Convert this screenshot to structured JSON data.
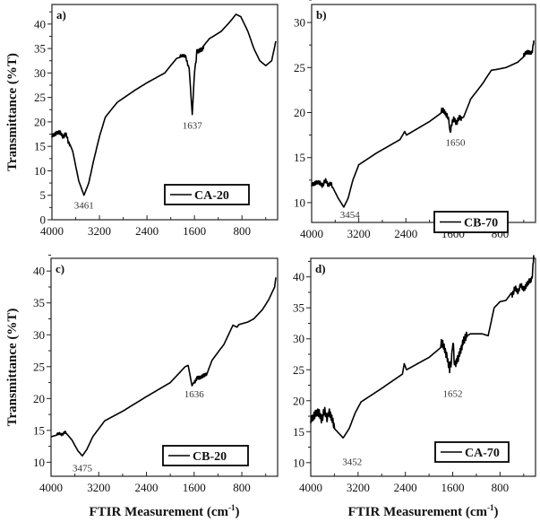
{
  "chart_data": [
    {
      "type": "line",
      "panel_label": "a)",
      "legend": "CA-20",
      "ylabel": "Transmittance (%T)",
      "xlabel": "",
      "xlim": [
        4000,
        200
      ],
      "ylim": [
        0,
        44
      ],
      "xticks": [
        "4000",
        "3200",
        "2400",
        "1600",
        "800"
      ],
      "yticks": [
        "0",
        "5",
        "10",
        "15",
        "20",
        "25",
        "30",
        "35",
        "40"
      ],
      "annotations": [
        {
          "text": "3461",
          "x": 3461,
          "y": 2.3
        },
        {
          "text": "1637",
          "x": 1637,
          "y": 18.6
        }
      ],
      "x": [
        4000,
        3850,
        3750,
        3650,
        3550,
        3461,
        3380,
        3300,
        3200,
        3100,
        2900,
        2600,
        2400,
        2100,
        1900,
        1750,
        1690,
        1637,
        1600,
        1560,
        1450,
        1350,
        1150,
        1000,
        900,
        820,
        700,
        600,
        500,
        400,
        300,
        230
      ],
      "y": [
        17.5,
        17.5,
        17,
        14,
        8,
        5,
        7.5,
        12,
        17,
        21,
        24,
        26.5,
        28,
        30,
        33,
        33.5,
        31,
        21.5,
        30,
        34.5,
        35.5,
        37,
        38.5,
        40.5,
        42,
        41.5,
        38.5,
        35,
        32.5,
        31.5,
        32.5,
        36.5
      ],
      "noise": [
        [
          4000,
          3700,
          0.7
        ],
        [
          1850,
          1700,
          0.5
        ],
        [
          1580,
          1450,
          0.8
        ]
      ]
    },
    {
      "type": "line",
      "panel_label": "b)",
      "legend": "CB-70",
      "ylabel": "",
      "xlabel": "",
      "xlim": [
        4000,
        200
      ],
      "ylim": [
        7.8,
        32
      ],
      "xticks": [
        "4000",
        "3200",
        "2400",
        "1600",
        "800"
      ],
      "yticks": [
        "10",
        "15",
        "20",
        "25",
        "30"
      ],
      "annotations": [
        {
          "text": "3454",
          "x": 3350,
          "y": 8.3
        },
        {
          "text": "1650",
          "x": 1560,
          "y": 16.3
        }
      ],
      "x": [
        4000,
        3850,
        3750,
        3650,
        3550,
        3454,
        3380,
        3300,
        3200,
        2900,
        2500,
        2420,
        2390,
        2000,
        1750,
        1690,
        1650,
        1600,
        1500,
        1420,
        1300,
        1100,
        950,
        850,
        700,
        500,
        350,
        260,
        230
      ],
      "y": [
        12.2,
        12,
        12.3,
        11.8,
        10.5,
        9.5,
        10.5,
        12.5,
        14.2,
        15.5,
        17,
        17.9,
        17.5,
        19,
        20.2,
        19.8,
        17.8,
        19,
        19.2,
        19.5,
        21.5,
        23.2,
        24.7,
        24.8,
        25,
        25.6,
        26.5,
        26.8,
        28
      ],
      "noise": [
        [
          4000,
          3650,
          0.4
        ],
        [
          1800,
          1450,
          0.5
        ],
        [
          400,
          230,
          0.4
        ]
      ]
    },
    {
      "type": "line",
      "panel_label": "c)",
      "legend": "CB-20",
      "ylabel": "Transmittance (%T)",
      "xlabel": "FTIR Measurement (cm-1)",
      "xlim": [
        4000,
        200
      ],
      "ylim": [
        7.8,
        42
      ],
      "xticks": [
        "4000",
        "3200",
        "2400",
        "1600",
        "800"
      ],
      "yticks": [
        "10",
        "15",
        "20",
        "25",
        "30",
        "35",
        "40"
      ],
      "annotations": [
        {
          "text": "3475",
          "x": 3475,
          "y": 8.6
        },
        {
          "text": "1636",
          "x": 1600,
          "y": 20.2
        }
      ],
      "x": [
        4000,
        3850,
        3750,
        3650,
        3550,
        3475,
        3400,
        3300,
        3100,
        2800,
        2400,
        2000,
        1750,
        1700,
        1636,
        1550,
        1400,
        1300,
        1100,
        950,
        880,
        850,
        700,
        600,
        450,
        350,
        250,
        230
      ],
      "y": [
        14,
        14.4,
        14.6,
        13.5,
        11.8,
        11,
        12,
        14,
        16.5,
        18,
        20.3,
        22.5,
        25,
        25.2,
        22,
        23.5,
        23.5,
        26,
        28.5,
        31.5,
        31.2,
        31.6,
        32,
        32.5,
        34,
        35.5,
        37.5,
        39
      ],
      "noise": [
        [
          3900,
          3750,
          0.3
        ],
        [
          1600,
          1400,
          0.5
        ]
      ]
    },
    {
      "type": "line",
      "panel_label": "d)",
      "legend": "CA-70",
      "ylabel": "",
      "xlabel": "FTIR Measurement (cm-1)",
      "xlim": [
        4000,
        200
      ],
      "ylim": [
        7.8,
        43
      ],
      "xticks": [
        "4000",
        "3200",
        "2400",
        "1600",
        "800"
      ],
      "yticks": [
        "10",
        "15",
        "20",
        "25",
        "30",
        "35",
        "40"
      ],
      "annotations": [
        {
          "text": "3452",
          "x": 3300,
          "y": 9.6
        },
        {
          "text": "1652",
          "x": 1600,
          "y": 20.6
        }
      ],
      "x": [
        4000,
        3850,
        3750,
        3680,
        3600,
        3452,
        3350,
        3250,
        3150,
        2800,
        2450,
        2420,
        2380,
        2000,
        1750,
        1690,
        1652,
        1600,
        1560,
        1500,
        1420,
        1300,
        1100,
        1000,
        900,
        800,
        700,
        600,
        500,
        400,
        320,
        260,
        230
      ],
      "y": [
        17.5,
        17.5,
        17.8,
        17.5,
        15.5,
        14,
        15.5,
        18,
        19.8,
        22,
        24.3,
        26,
        25,
        27,
        29,
        27.5,
        24.5,
        29,
        26,
        26.5,
        30.2,
        30.8,
        30.8,
        30.5,
        35,
        36,
        36.2,
        37.5,
        38,
        38.5,
        39,
        40,
        43.5
      ],
      "noise": [
        [
          4000,
          3600,
          1.2
        ],
        [
          1800,
          1350,
          1.2
        ],
        [
          600,
          230,
          0.8
        ]
      ]
    }
  ]
}
